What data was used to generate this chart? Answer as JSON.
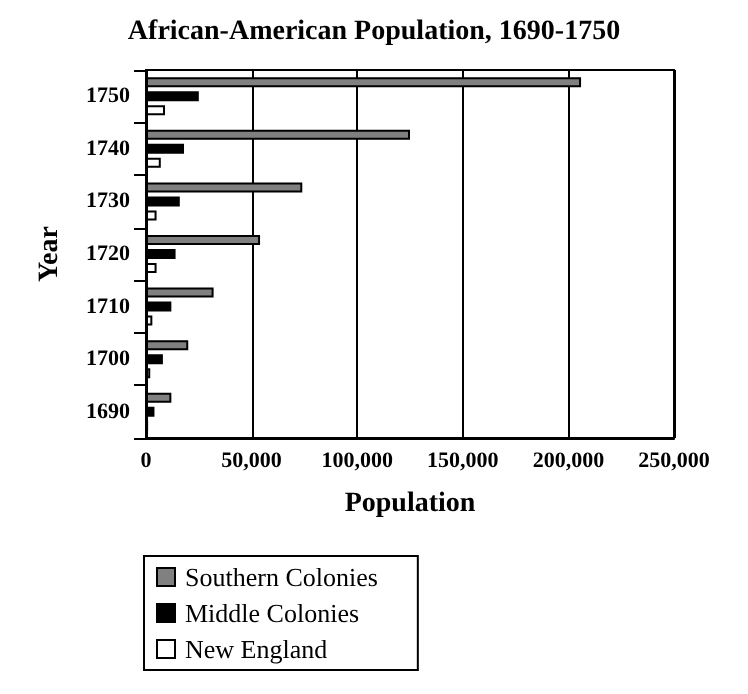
{
  "chart_data": {
    "type": "bar",
    "orientation": "horizontal",
    "title": "African-American Population, 1690-1750",
    "xlabel": "Population",
    "ylabel": "Year",
    "categories": [
      "1750",
      "1740",
      "1730",
      "1720",
      "1710",
      "1700",
      "1690"
    ],
    "series": [
      {
        "name": "Southern Colonies",
        "color": "#808080",
        "values": [
          206000,
          125000,
          74000,
          54000,
          32000,
          20000,
          12000
        ]
      },
      {
        "name": "Middle Colonies",
        "color": "#000000",
        "values": [
          25000,
          18000,
          16000,
          14000,
          12000,
          8000,
          4000
        ]
      },
      {
        "name": "New England",
        "color": "#ffffff",
        "values": [
          9000,
          7000,
          5000,
          5000,
          3000,
          2000,
          1000
        ]
      }
    ],
    "xlim": [
      0,
      250000
    ],
    "xticks": [
      0,
      {
        "value": 50000,
        "label": "50,000"
      },
      {
        "value": 100000,
        "label": "100,000"
      },
      {
        "value": 150000,
        "label": "150,000"
      },
      {
        "value": 200000,
        "label": "200,000"
      },
      {
        "value": 250000,
        "label": "250,000"
      }
    ],
    "grid": "x",
    "legend": "bottom"
  }
}
